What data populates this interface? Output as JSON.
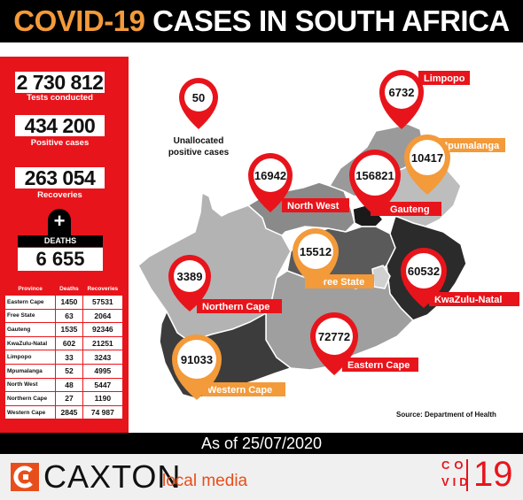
{
  "header": {
    "title_part1": "COVID-19",
    "title_part2": "CASES IN SOUTH AFRICA"
  },
  "stats": {
    "tests": {
      "value": "2 730 812",
      "label": "Tests conducted"
    },
    "positive": {
      "value": "434 200",
      "label": "Positive cases"
    },
    "recoveries": {
      "value": "263 054",
      "label": "Recoveries"
    },
    "deaths": {
      "icon": "plus-icon",
      "label": "DEATHS",
      "value": "6 655"
    }
  },
  "table": {
    "headers": [
      "Province",
      "Deaths",
      "Recoveries"
    ],
    "rows": [
      {
        "province": "Eastern Cape",
        "deaths": "1450",
        "recoveries": "57531"
      },
      {
        "province": "Free State",
        "deaths": "63",
        "recoveries": "2064"
      },
      {
        "province": "Gauteng",
        "deaths": "1535",
        "recoveries": "92346"
      },
      {
        "province": "KwaZulu-Natal",
        "deaths": "602",
        "recoveries": "21251"
      },
      {
        "province": "Limpopo",
        "deaths": "33",
        "recoveries": "3243"
      },
      {
        "province": "Mpumalanga",
        "deaths": "52",
        "recoveries": "4995"
      },
      {
        "province": "North West",
        "deaths": "48",
        "recoveries": "5447"
      },
      {
        "province": "Northern Cape",
        "deaths": "27",
        "recoveries": "1190"
      },
      {
        "province": "Western Cape",
        "deaths": "2845",
        "recoveries": "74 987"
      }
    ]
  },
  "map": {
    "unallocated": {
      "value": "50",
      "label_line1": "Unallocated",
      "label_line2": "positive cases"
    },
    "provinces": [
      {
        "name": "Limpopo",
        "cases": "6732",
        "color": "#e8141b"
      },
      {
        "name": "Mpumalanga",
        "cases": "10417",
        "color": "#f39a3a"
      },
      {
        "name": "North West",
        "cases": "16942",
        "color": "#e8141b"
      },
      {
        "name": "Gauteng",
        "cases": "156821",
        "color": "#e8141b"
      },
      {
        "name": "Free State",
        "cases": "15512",
        "color": "#f39a3a"
      },
      {
        "name": "KwaZulu-Natal",
        "cases": "60532",
        "color": "#e8141b"
      },
      {
        "name": "Northern Cape",
        "cases": "3389",
        "color": "#e8141b"
      },
      {
        "name": "Eastern Cape",
        "cases": "72772",
        "color": "#e8141b"
      },
      {
        "name": "Western Cape",
        "cases": "91033",
        "color": "#f39a3a"
      }
    ],
    "source": "Source: Department of Health"
  },
  "footer": {
    "as_of": "As of 25/07/2020",
    "logo_icon": "caxton-c-icon",
    "brand": "CAXTON",
    "brand_sub": "local media",
    "covid_logo": {
      "line1": "CO",
      "line2": "VID",
      "number": "19"
    }
  },
  "colors": {
    "red": "#e8141b",
    "orange": "#f39a3a",
    "black": "#000000"
  }
}
